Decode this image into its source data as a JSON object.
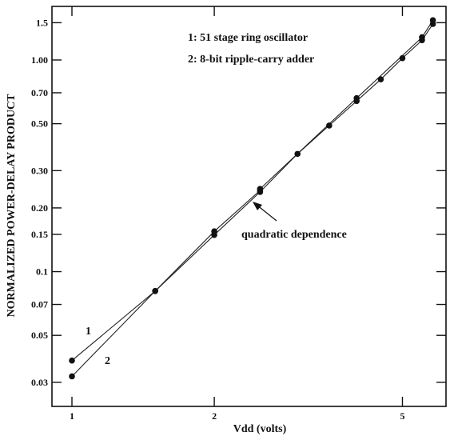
{
  "chart_data": {
    "type": "line",
    "xlabel": "Vdd (volts)",
    "ylabel": "NORMALIZED POWER-DELAY PRODUCT",
    "xscale": "log",
    "yscale": "log",
    "xlim": [
      1,
      5.9
    ],
    "ylim": [
      0.027,
      1.7
    ],
    "grid": false,
    "x_ticks": [
      {
        "value": 1,
        "label": "1"
      },
      {
        "value": 2,
        "label": "2"
      },
      {
        "value": 5,
        "label": "5"
      }
    ],
    "y_ticks": [
      {
        "value": 1.5,
        "label": "1.5"
      },
      {
        "value": 1.0,
        "label": "1.00"
      },
      {
        "value": 0.7,
        "label": "0.70"
      },
      {
        "value": 0.5,
        "label": "0.50"
      },
      {
        "value": 0.3,
        "label": "0.30"
      },
      {
        "value": 0.2,
        "label": "0.20"
      },
      {
        "value": 0.15,
        "label": "0.15"
      },
      {
        "value": 0.1,
        "label": "0.1"
      },
      {
        "value": 0.07,
        "label": "0.07"
      },
      {
        "value": 0.05,
        "label": "0.05"
      },
      {
        "value": 0.03,
        "label": "0.03"
      }
    ],
    "legend": [
      "1: 51 stage ring oscillator",
      "2: 8-bit ripple-carry adder"
    ],
    "series": [
      {
        "name": "1",
        "x": [
          1.0,
          1.5,
          2.0,
          2.5
        ],
        "y": [
          0.038,
          0.081,
          0.155,
          0.242
        ]
      },
      {
        "name": "2",
        "x": [
          1.0,
          1.5,
          2.0,
          2.5,
          3.0,
          3.5,
          4.0,
          4.5,
          5.0,
          5.5,
          5.8
        ],
        "y": [
          0.032,
          0.081,
          0.149,
          0.238,
          0.36,
          0.49,
          0.64,
          0.81,
          1.02,
          1.24,
          1.48
        ]
      },
      {
        "name": "",
        "x": [
          2.5,
          4.0,
          5.5,
          5.8
        ],
        "y": [
          0.246,
          0.66,
          1.28,
          1.54
        ]
      }
    ],
    "annotations": [
      {
        "text": "quadratic dependence",
        "x": 2.5,
        "y": 0.235
      },
      {
        "text": "1",
        "series": "1"
      },
      {
        "text": "2",
        "series": "2"
      }
    ]
  }
}
